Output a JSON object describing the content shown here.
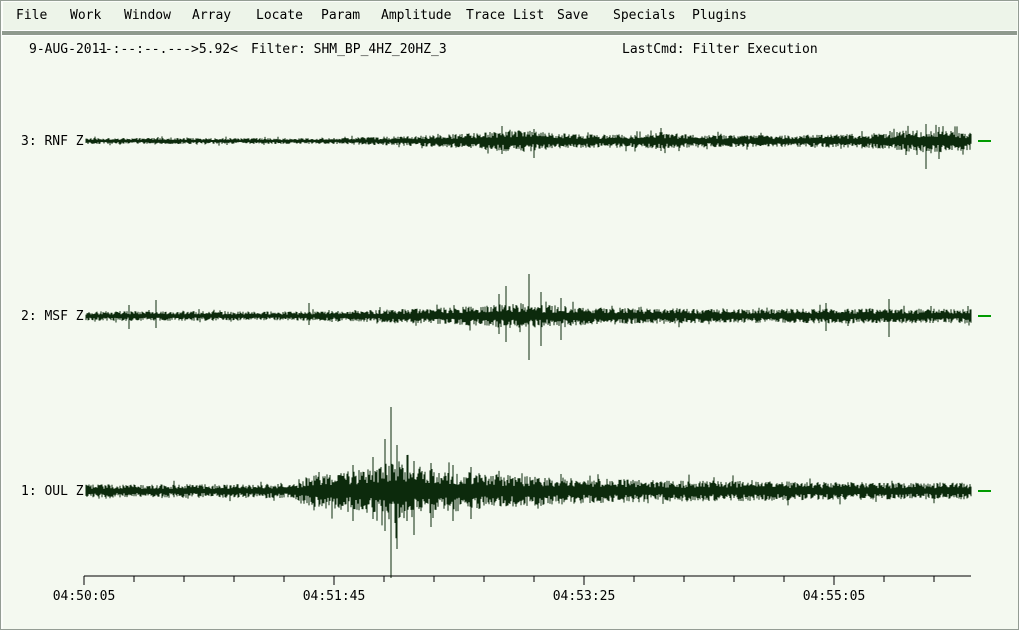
{
  "menu": {
    "items": [
      {
        "label": "File"
      },
      {
        "label": "Work"
      },
      {
        "label": "Window"
      },
      {
        "label": "Array"
      },
      {
        "label": "Locate"
      },
      {
        "label": "Param"
      },
      {
        "label": "Amplitude"
      },
      {
        "label": "Trace List"
      },
      {
        "label": "Save"
      },
      {
        "label": "Specials"
      },
      {
        "label": "Plugins"
      }
    ]
  },
  "status": {
    "date": "9-AUG-2011",
    "time": "--:--:--.---",
    "magnitude": ">5.92<",
    "filter": "Filter: SHM_BP_4HZ_20HZ_3",
    "last_cmd": "LastCmd: Filter Execution"
  },
  "chart_data": {
    "type": "line",
    "kind": "seismogram-multitrace",
    "title": "",
    "colors": {
      "trace": "#0c2a0c",
      "axis": "#000000",
      "end_marker": "#009b00",
      "text": "#000000"
    },
    "x_axis": {
      "tick_labels": [
        "04:50:05",
        "04:51:45",
        "04:53:25",
        "04:55:05"
      ],
      "major_tick_seconds": 100,
      "minor_tick_seconds": 20,
      "grid": false
    },
    "legend": "none",
    "traces": [
      {
        "label": "3: RNF Z",
        "station": "RNF",
        "component": "Z",
        "seed": 1301,
        "envelope": [
          [
            0.0,
            3
          ],
          [
            0.28,
            3
          ],
          [
            0.34,
            4.5
          ],
          [
            0.42,
            7
          ],
          [
            0.465,
            10
          ],
          [
            0.5,
            11
          ],
          [
            0.53,
            8
          ],
          [
            0.58,
            6.5
          ],
          [
            0.63,
            7
          ],
          [
            0.65,
            9
          ],
          [
            0.67,
            7
          ],
          [
            0.72,
            6
          ],
          [
            0.8,
            6
          ],
          [
            0.86,
            7
          ],
          [
            0.9,
            8
          ],
          [
            0.935,
            11
          ],
          [
            0.95,
            13
          ],
          [
            0.97,
            11
          ],
          [
            1.0,
            9
          ]
        ],
        "spikes": [
          [
            0.47,
            15,
            13
          ],
          [
            0.506,
            12,
            17
          ],
          [
            0.65,
            13,
            10
          ],
          [
            0.927,
            8,
            14
          ],
          [
            0.949,
            17,
            28
          ],
          [
            0.964,
            14,
            18
          ]
        ]
      },
      {
        "label": "2: MSF Z",
        "station": "MSF",
        "component": "Z",
        "seed": 2502,
        "envelope": [
          [
            0.0,
            4.5
          ],
          [
            0.04,
            5
          ],
          [
            0.24,
            4.5
          ],
          [
            0.3,
            5.5
          ],
          [
            0.36,
            7
          ],
          [
            0.42,
            9
          ],
          [
            0.46,
            11
          ],
          [
            0.49,
            13
          ],
          [
            0.52,
            11
          ],
          [
            0.57,
            9
          ],
          [
            0.62,
            8
          ],
          [
            0.7,
            7
          ],
          [
            0.78,
            7
          ],
          [
            0.84,
            7.5
          ],
          [
            0.91,
            7.5
          ],
          [
            1.0,
            7
          ]
        ],
        "spikes": [
          [
            0.049,
            11,
            13
          ],
          [
            0.079,
            16,
            12
          ],
          [
            0.252,
            13,
            9
          ],
          [
            0.467,
            22,
            18
          ],
          [
            0.475,
            30,
            26
          ],
          [
            0.501,
            42,
            44
          ],
          [
            0.514,
            24,
            30
          ],
          [
            0.537,
            18,
            24
          ],
          [
            0.836,
            13,
            15
          ],
          [
            0.907,
            17,
            21
          ]
        ]
      },
      {
        "label": "1: OUL Z",
        "station": "OUL",
        "component": "Z",
        "seed": 3703,
        "envelope": [
          [
            0.0,
            6.5
          ],
          [
            0.2,
            7
          ],
          [
            0.235,
            7.5
          ],
          [
            0.25,
            15
          ],
          [
            0.27,
            18
          ],
          [
            0.3,
            20
          ],
          [
            0.325,
            23
          ],
          [
            0.34,
            28
          ],
          [
            0.348,
            34
          ],
          [
            0.36,
            28
          ],
          [
            0.38,
            24
          ],
          [
            0.41,
            21
          ],
          [
            0.45,
            18
          ],
          [
            0.5,
            15
          ],
          [
            0.55,
            13
          ],
          [
            0.62,
            11.5
          ],
          [
            0.7,
            10.5
          ],
          [
            0.8,
            9.5
          ],
          [
            0.9,
            8.5
          ],
          [
            1.0,
            8.5
          ]
        ],
        "spikes": [
          [
            0.302,
            26,
            30
          ],
          [
            0.324,
            34,
            28
          ],
          [
            0.338,
            52,
            40
          ],
          [
            0.345,
            84,
            87
          ],
          [
            0.351,
            46,
            58
          ],
          [
            0.363,
            36,
            30
          ],
          [
            0.371,
            30,
            44
          ],
          [
            0.39,
            28,
            36
          ],
          [
            0.415,
            26,
            30
          ],
          [
            0.435,
            24,
            28
          ]
        ]
      }
    ]
  }
}
